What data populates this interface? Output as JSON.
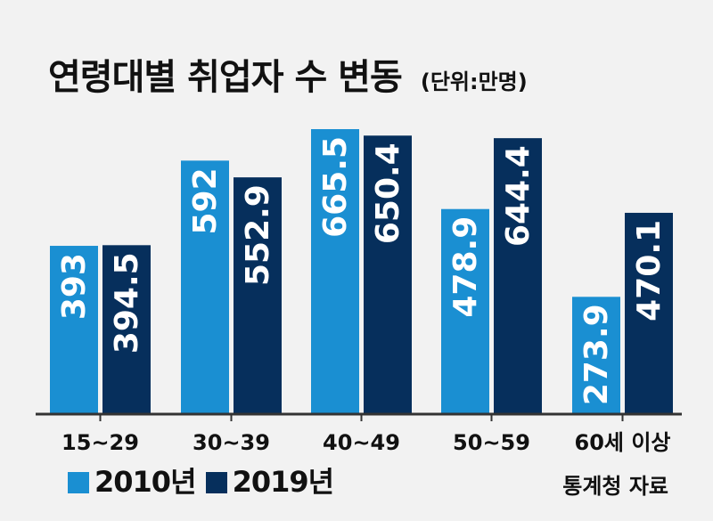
{
  "title": "연령대별 취업자 수 변동",
  "unit": "(단위:만명)",
  "source": "통계청 자료",
  "colors": {
    "series_2010": "#1a8fd2",
    "series_2019": "#062f5c",
    "axis": "#333333",
    "text": "#111111",
    "background": "#f2f2f2"
  },
  "legend": [
    {
      "label": "2010년",
      "color": "#1a8fd2"
    },
    {
      "label": "2019년",
      "color": "#062f5c"
    }
  ],
  "chart_data": {
    "type": "bar",
    "title": "연령대별 취업자 수 변동",
    "unit": "(단위:만명)",
    "categories": [
      "15~29",
      "30~39",
      "40~49",
      "50~59",
      "60세 이상"
    ],
    "series": [
      {
        "name": "2010년",
        "values": [
          393,
          592,
          665.5,
          478.9,
          273.9
        ],
        "labels": [
          "393",
          "592",
          "665.5",
          "478.9",
          "273.9"
        ]
      },
      {
        "name": "2019년",
        "values": [
          394.5,
          552.9,
          650.4,
          644.4,
          470.1
        ],
        "labels": [
          "394.5",
          "552.9",
          "650.4",
          "644.4",
          "470.1"
        ]
      }
    ],
    "ylim": [
      0,
      680
    ],
    "grid": false,
    "legend_position": "bottom-left"
  }
}
